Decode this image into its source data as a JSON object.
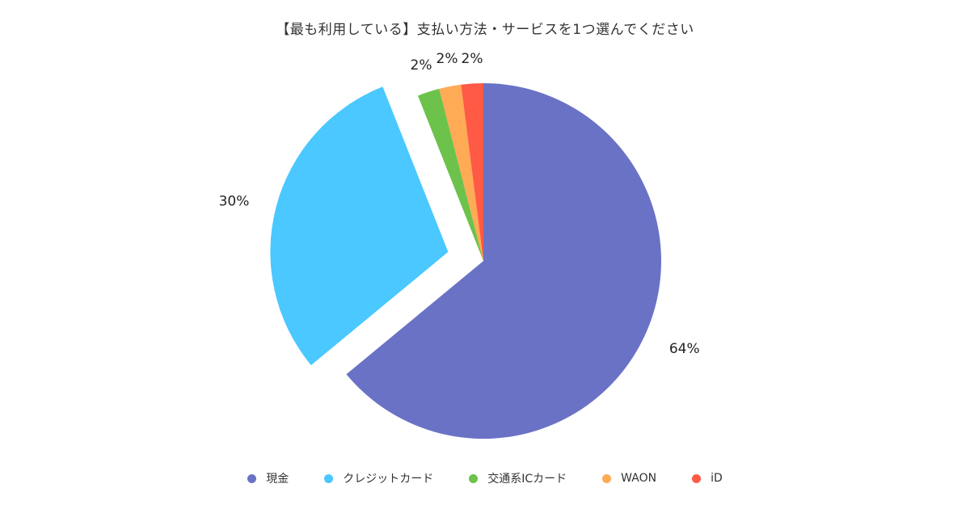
{
  "chart_data": {
    "type": "pie",
    "title": "【最も利用している】支払い方法・サービスを1つ選んでください",
    "slices": [
      {
        "name": "現金",
        "value": 64,
        "label": "64%",
        "color": "#6a72c6"
      },
      {
        "name": "クレジットカード",
        "value": 30,
        "label": "30%",
        "color": "#4ac8ff",
        "exploded": true
      },
      {
        "name": "交通系ICカード",
        "value": 2,
        "label": "2%",
        "color": "#6cc24a"
      },
      {
        "name": "WAON",
        "value": 2,
        "label": "2%",
        "color": "#ffaa55"
      },
      {
        "name": "iD",
        "value": 2,
        "label": "2%",
        "color": "#ff5a45"
      }
    ],
    "start_angle": "12 o'clock, clockwise",
    "legend_position": "bottom"
  }
}
